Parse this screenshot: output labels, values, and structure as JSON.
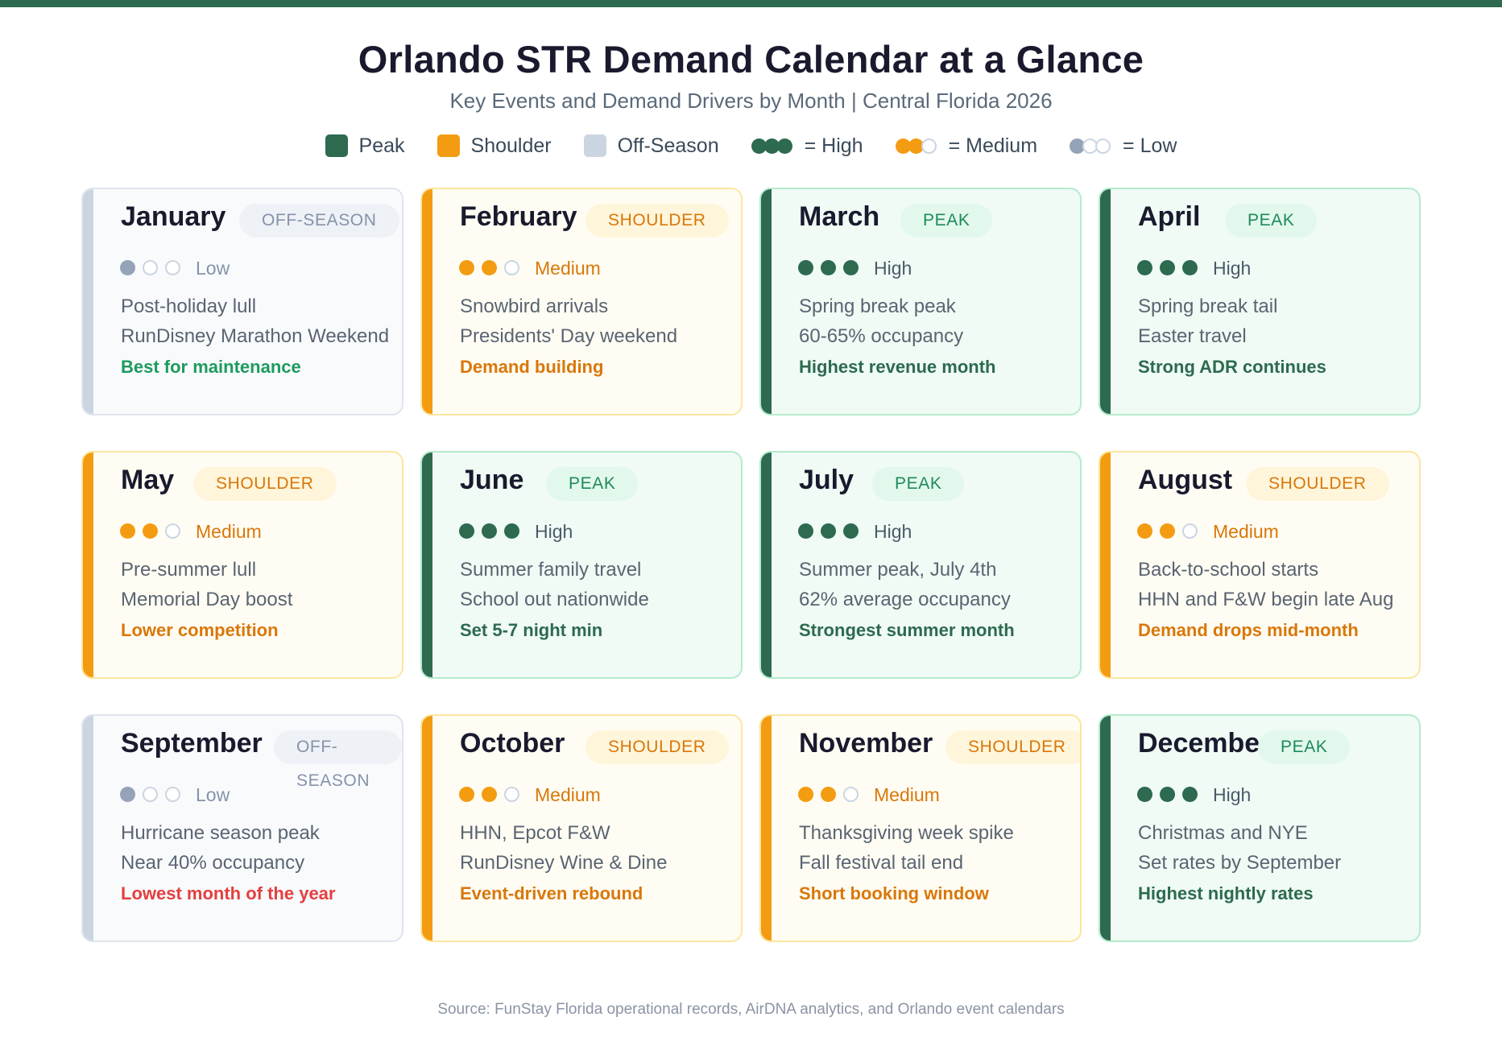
{
  "header": {
    "title": "Orlando STR Demand Calendar at a Glance",
    "subtitle": "Key Events and Demand Drivers by Month | Central Florida 2026"
  },
  "colors": {
    "peak": "#2d6a4f",
    "shoulder": "#f39c12",
    "off_season": "#cbd5e1",
    "high_text": "#2d6a4f",
    "red_text": "#e53e3e",
    "teal_text": "#1e8a5a"
  },
  "legend": {
    "peak": "Peak",
    "shoulder": "Shoulder",
    "off_season": "Off-Season",
    "high": "= High",
    "medium": "= Medium",
    "low": "= Low"
  },
  "months": [
    {
      "name": "January",
      "season": "OFF-SEASON",
      "type": "offseason",
      "level": "Low",
      "filled": 1,
      "line1": "Post-holiday lull",
      "line2": "RunDisney Marathon Weekend",
      "note": "Best for maintenance",
      "note_color": "#1e9a5e"
    },
    {
      "name": "February",
      "season": "SHOULDER",
      "type": "shoulder",
      "level": "Medium",
      "filled": 2,
      "line1": "Snowbird arrivals",
      "line2": "Presidents' Day weekend",
      "note": "Demand building",
      "note_color": "#d9770a"
    },
    {
      "name": "March",
      "season": "PEAK",
      "type": "peak",
      "level": "High",
      "filled": 3,
      "line1": "Spring break peak",
      "line2": "60-65% occupancy",
      "note": "Highest revenue month",
      "note_color": "#2d6a4f"
    },
    {
      "name": "April",
      "season": "PEAK",
      "type": "peak",
      "level": "High",
      "filled": 3,
      "line1": "Spring break tail",
      "line2": "Easter travel",
      "note": "Strong ADR continues",
      "note_color": "#2d6a4f"
    },
    {
      "name": "May",
      "season": "SHOULDER",
      "type": "shoulder",
      "level": "Medium",
      "filled": 2,
      "line1": "Pre-summer lull",
      "line2": "Memorial Day boost",
      "note": "Lower competition",
      "note_color": "#d9770a"
    },
    {
      "name": "June",
      "season": "PEAK",
      "type": "peak",
      "level": "High",
      "filled": 3,
      "line1": "Summer family travel",
      "line2": "School out nationwide",
      "note": "Set 5-7 night min",
      "note_color": "#2d6a4f"
    },
    {
      "name": "July",
      "season": "PEAK",
      "type": "peak",
      "level": "High",
      "filled": 3,
      "line1": "Summer peak, July 4th",
      "line2": "62% average occupancy",
      "note": "Strongest summer month",
      "note_color": "#2d6a4f"
    },
    {
      "name": "August",
      "season": "SHOULDER",
      "type": "shoulder",
      "level": "Medium",
      "filled": 2,
      "line1": "Back-to-school starts",
      "line2": "HHN and F&W begin late Aug",
      "note": "Demand drops mid-month",
      "note_color": "#d9770a"
    },
    {
      "name": "September",
      "season": "OFF-SEASON",
      "type": "offseason",
      "level": "Low",
      "filled": 1,
      "line1": "Hurricane season peak",
      "line2": "Near 40% occupancy",
      "note": "Lowest month of the year",
      "note_color": "#e53e3e"
    },
    {
      "name": "October",
      "season": "SHOULDER",
      "type": "shoulder",
      "level": "Medium",
      "filled": 2,
      "line1": "HHN, Epcot F&W",
      "line2": "RunDisney Wine & Dine",
      "note": "Event-driven rebound",
      "note_color": "#d9770a"
    },
    {
      "name": "November",
      "season": "SHOULDER",
      "type": "shoulder",
      "level": "Medium",
      "filled": 2,
      "line1": "Thanksgiving week spike",
      "line2": "Fall festival tail end",
      "note": "Short booking window",
      "note_color": "#d9770a"
    },
    {
      "name": "December",
      "season": "PEAK",
      "type": "peak",
      "level": "High",
      "filled": 3,
      "line1": "Christmas and NYE",
      "line2": "Set rates by September",
      "note": "Highest nightly rates",
      "note_color": "#2d6a4f"
    }
  ],
  "footer": {
    "source": "Source: FunStay Florida operational records, AirDNA analytics, and Orlando event calendars"
  }
}
